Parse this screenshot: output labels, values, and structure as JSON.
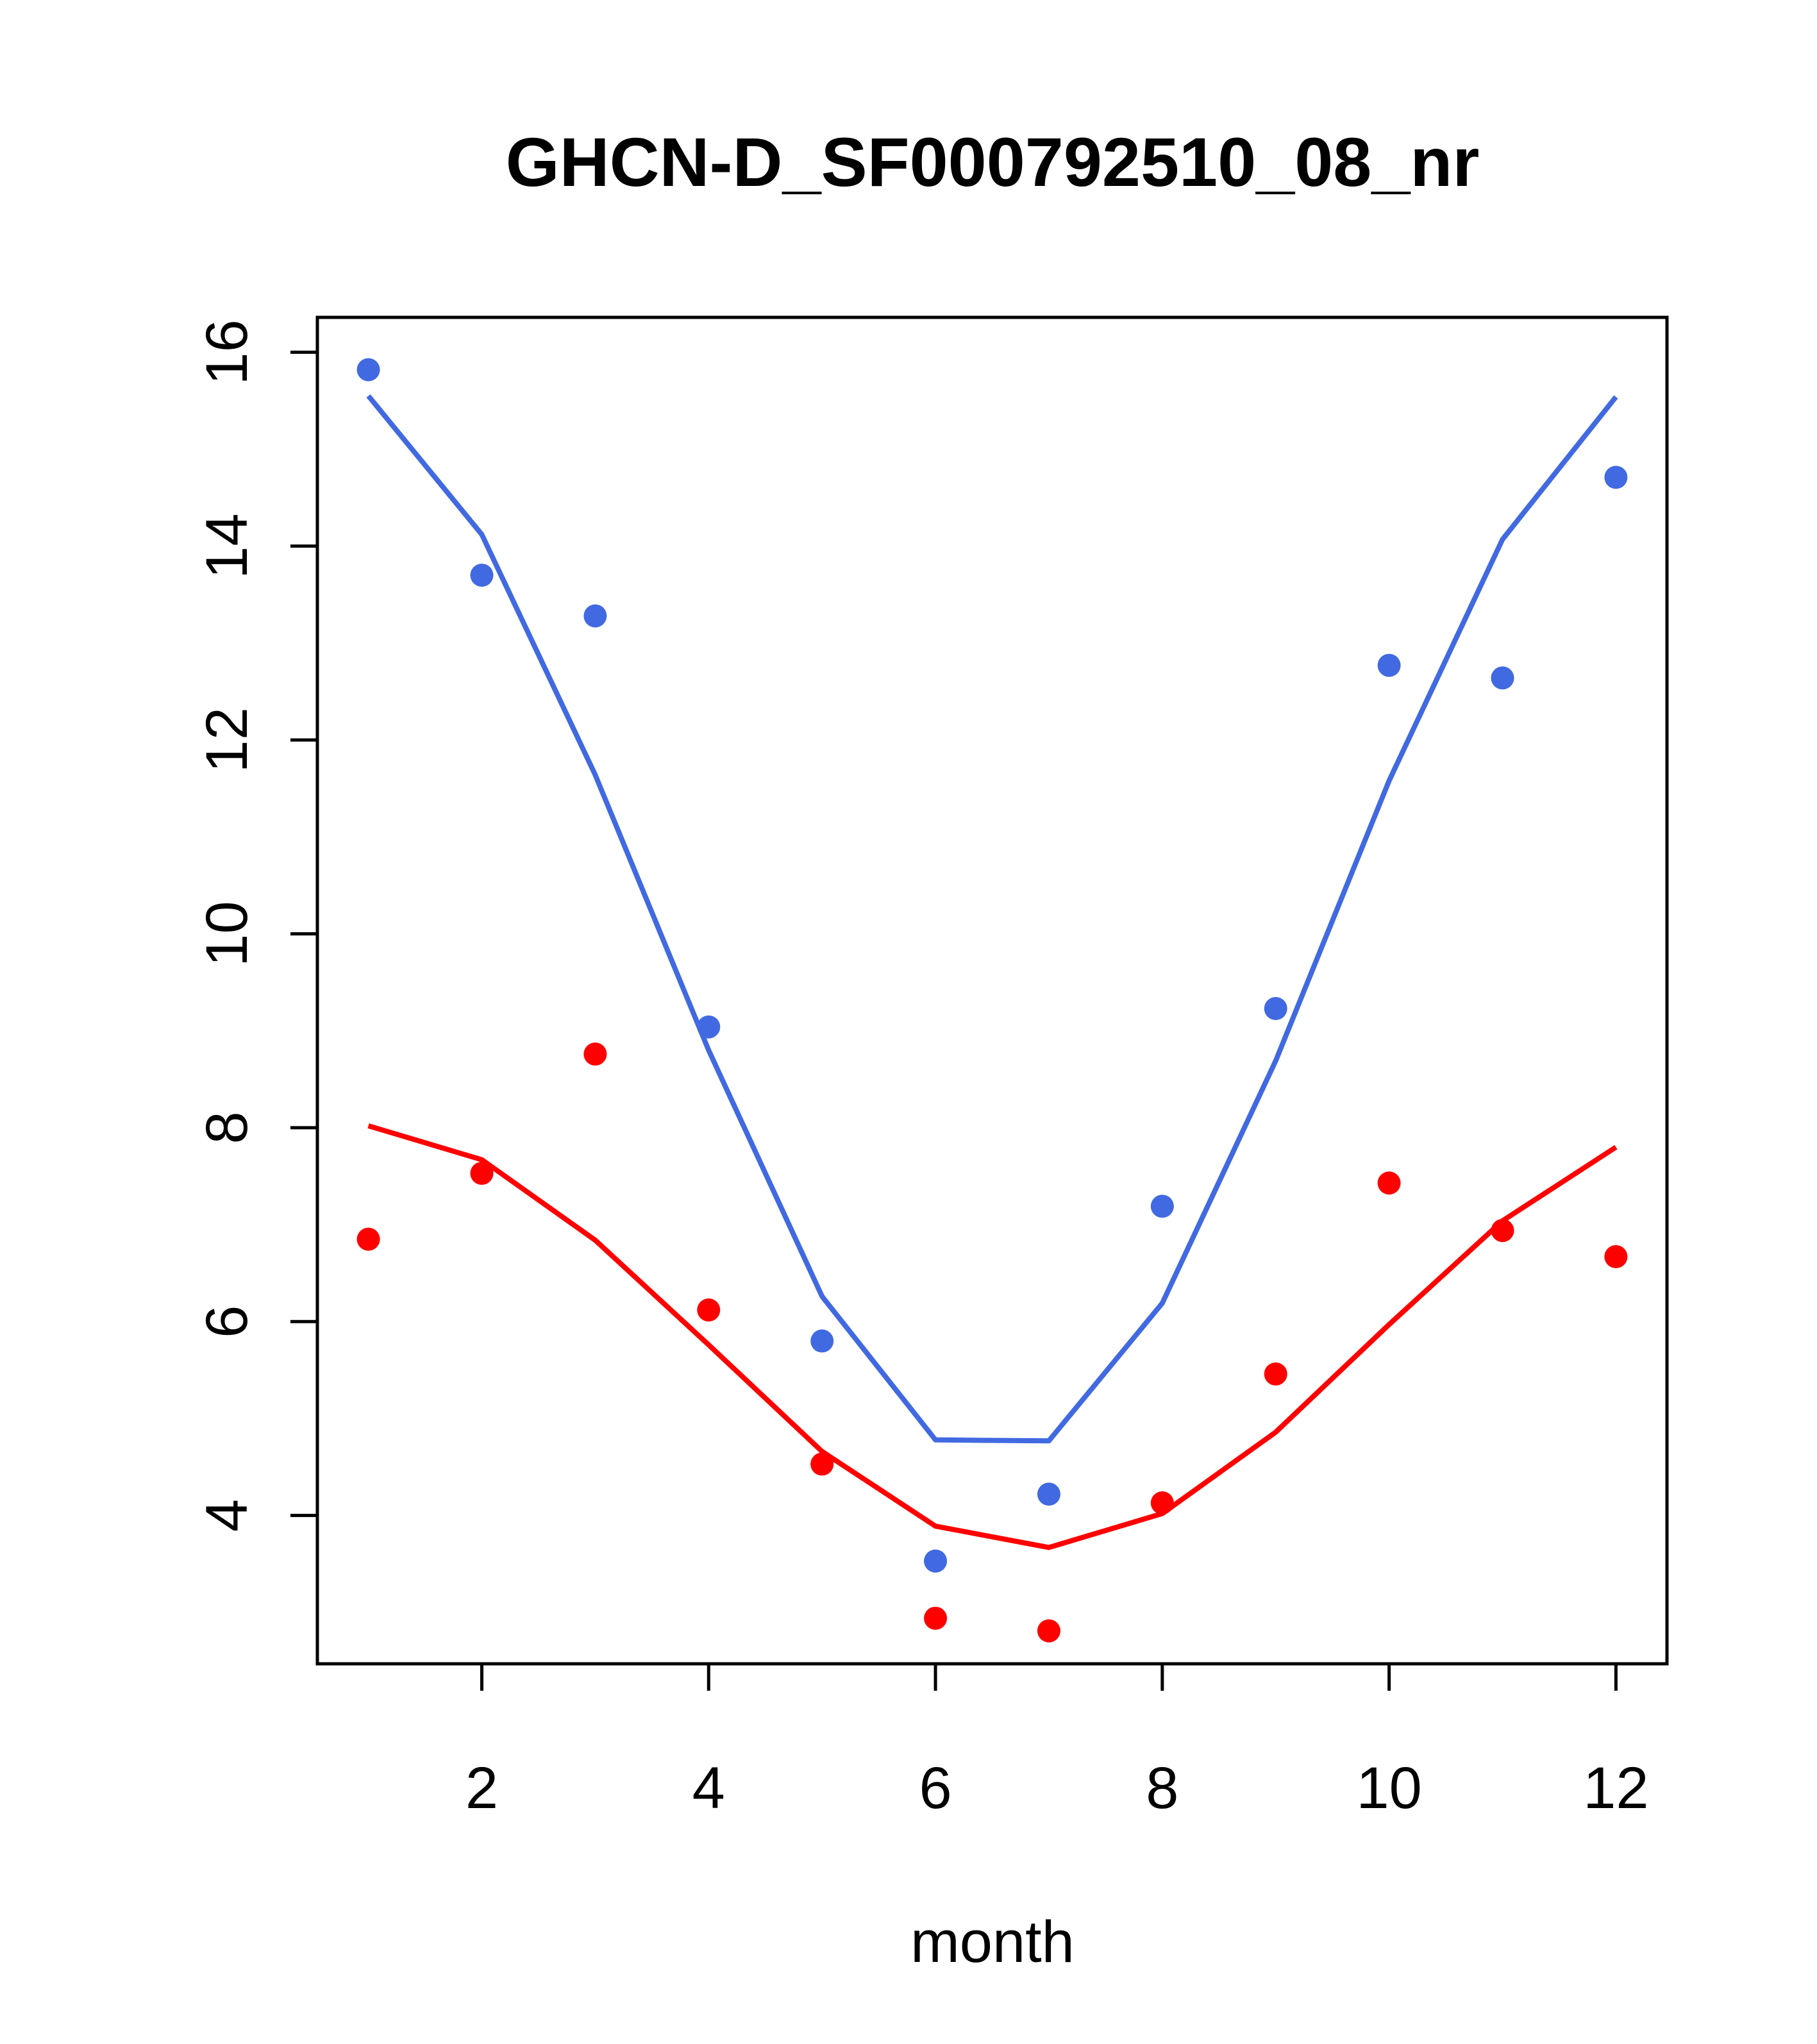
{
  "chart_data": {
    "type": "line",
    "title": "GHCN-D_SF000792510_08_nr",
    "xlabel": "month",
    "ylabel": "",
    "xlim": [
      0.55,
      12.45
    ],
    "ylim": [
      2.47,
      16.36
    ],
    "x_ticks": [
      2,
      4,
      6,
      8,
      10,
      12
    ],
    "y_ticks": [
      4,
      6,
      8,
      10,
      12,
      14,
      16
    ],
    "grid": false,
    "legend": "none",
    "x": [
      1,
      2,
      3,
      4,
      5,
      6,
      7,
      8,
      9,
      10,
      11,
      12
    ],
    "series": [
      {
        "color": "#4169E1",
        "points": [
          15.82,
          13.7,
          13.28,
          9.04,
          5.8,
          3.53,
          4.22,
          7.19,
          9.23,
          12.77,
          12.64,
          14.71
        ],
        "fit": [
          15.55,
          14.12,
          11.64,
          8.8,
          6.26,
          4.78,
          4.77,
          6.19,
          8.69,
          11.58,
          14.07,
          15.54
        ]
      },
      {
        "color": "#FF0000",
        "points": [
          6.85,
          7.53,
          8.76,
          6.12,
          4.53,
          2.94,
          2.81,
          4.13,
          5.46,
          7.43,
          6.94,
          6.67
        ],
        "fit": [
          8.02,
          7.67,
          6.84,
          5.76,
          4.66,
          3.89,
          3.67,
          4.02,
          4.86,
          5.97,
          7.04,
          7.8
        ]
      }
    ]
  }
}
